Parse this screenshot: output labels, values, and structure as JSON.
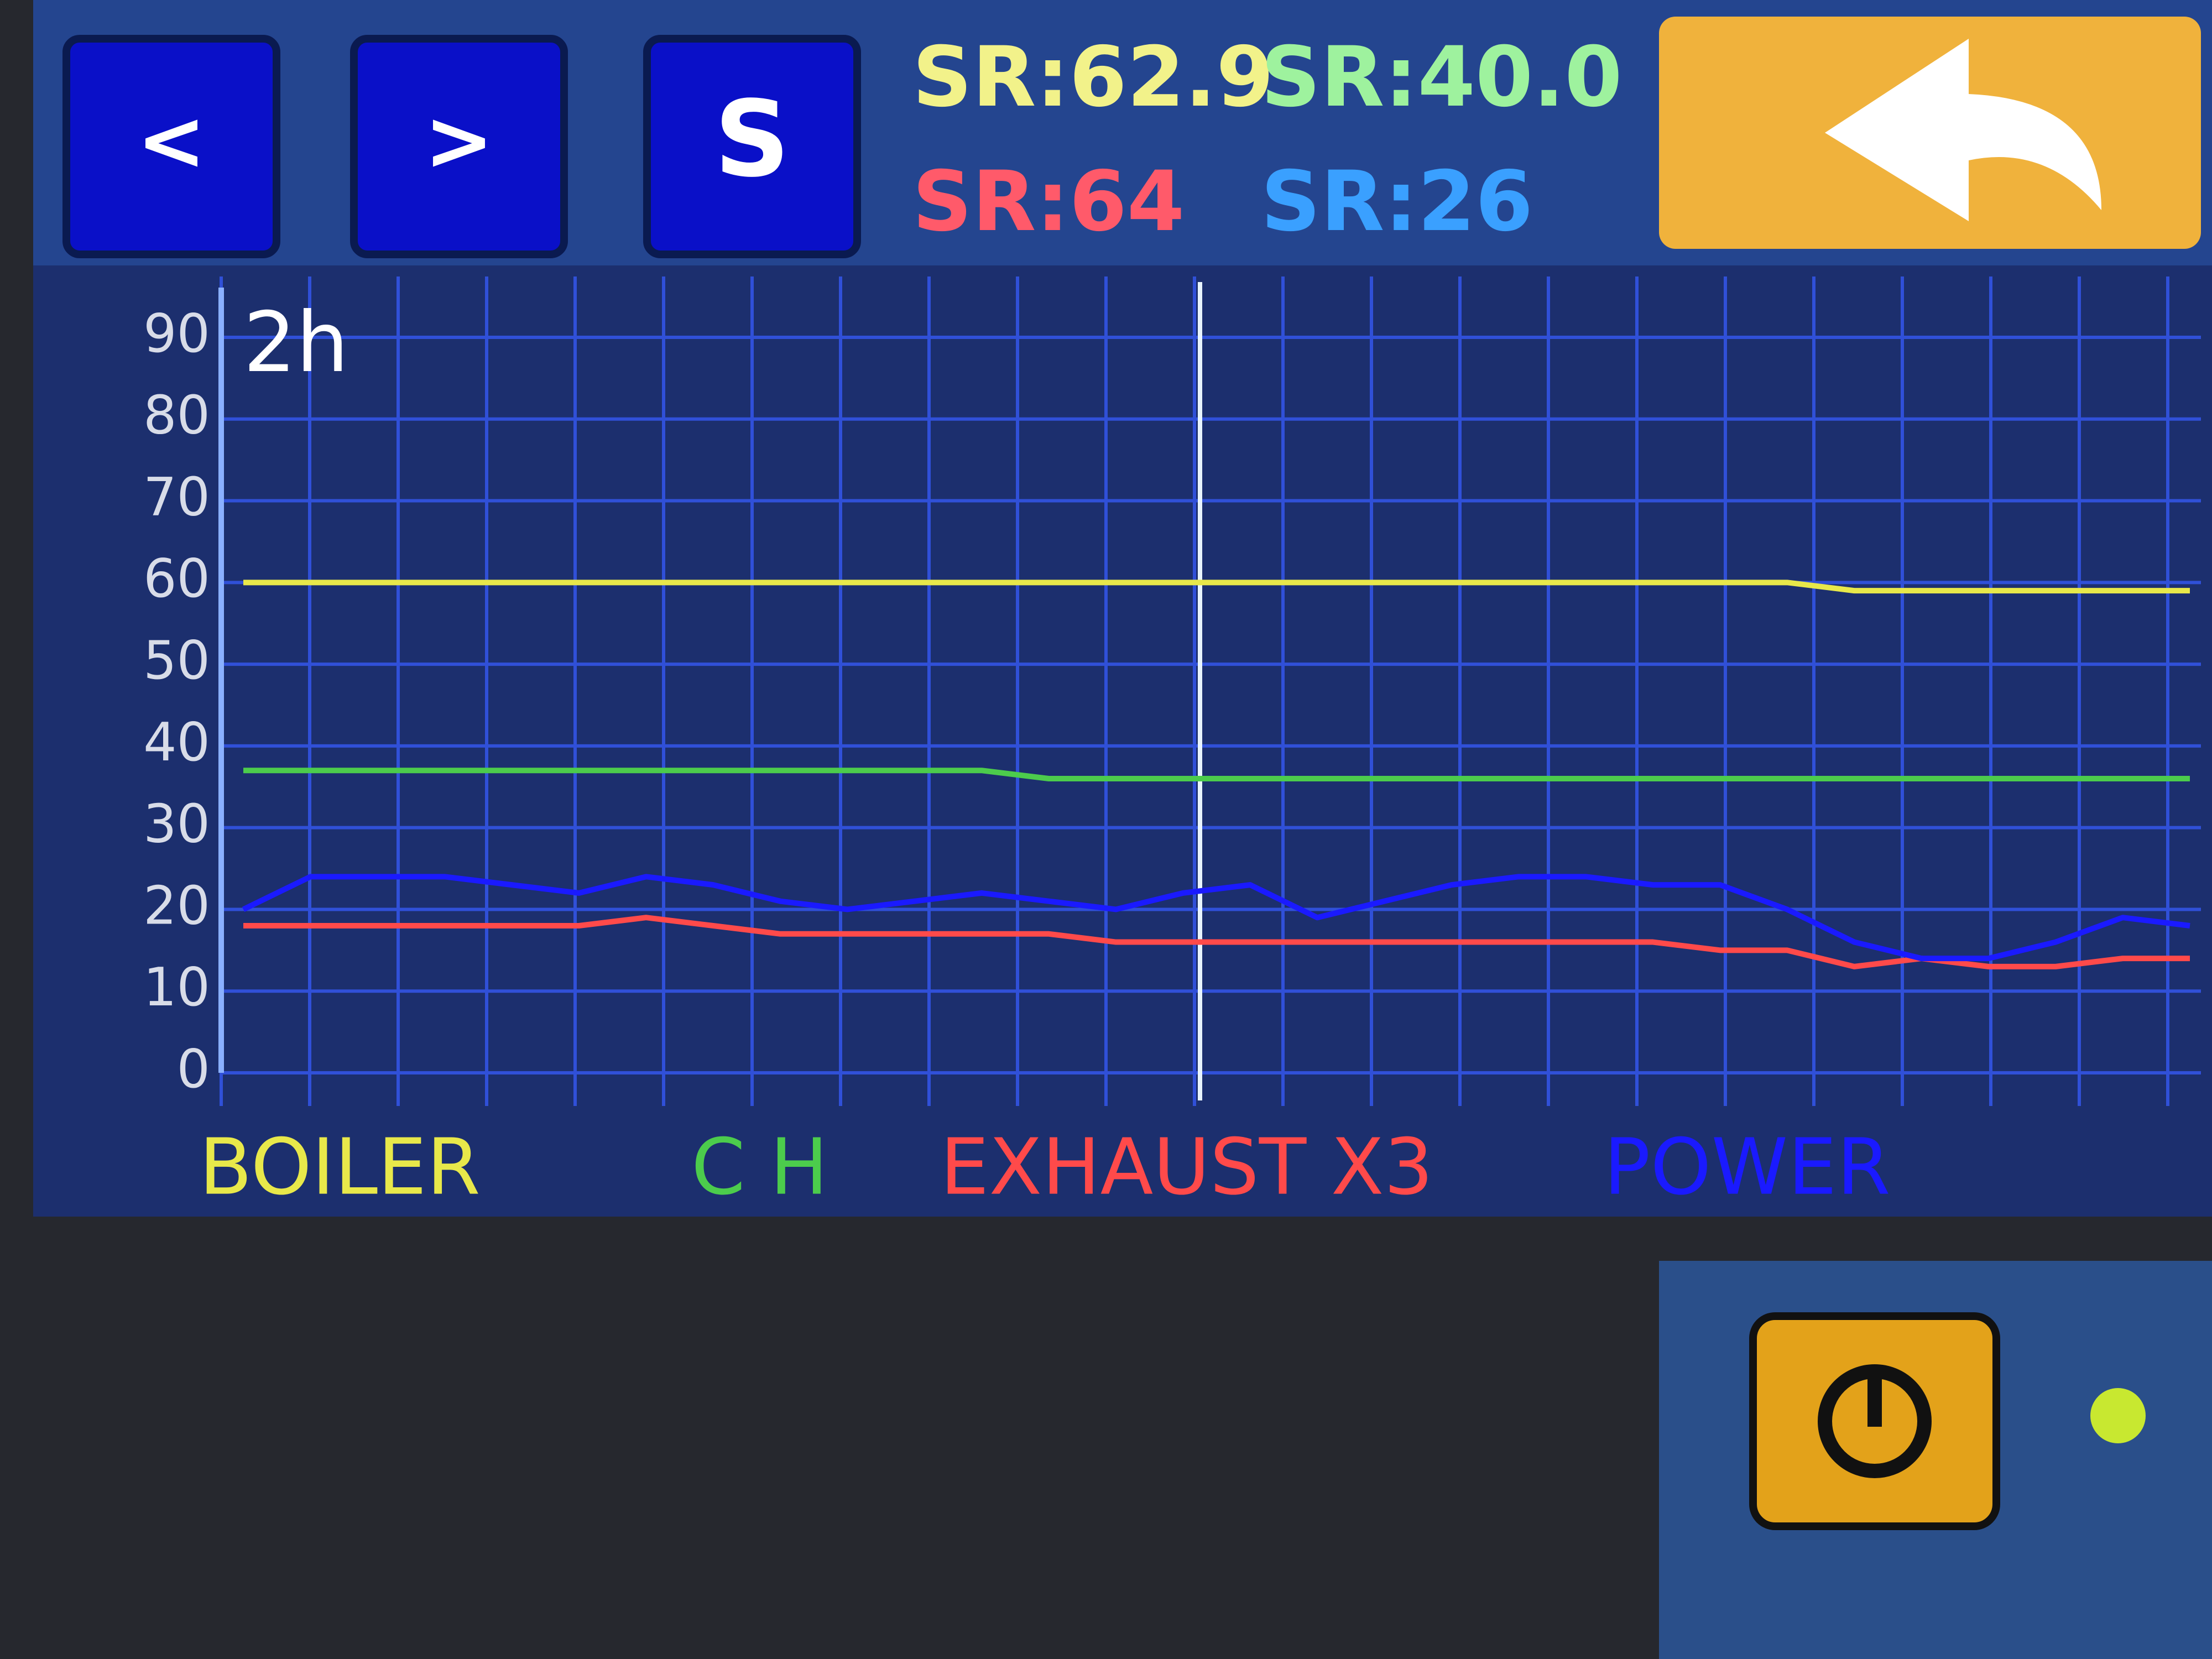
{
  "ui": {
    "buttons": [
      "<",
      ">",
      "S"
    ],
    "readings": [
      {
        "text": "SR:62.9",
        "color": "#f2f28a"
      },
      {
        "text": "SR:40.0",
        "color": "#9ef29e"
      },
      {
        "text": "SR:64",
        "color": "#ff5a6a"
      },
      {
        "text": "SR:26",
        "color": "#3aa0ff"
      }
    ]
  },
  "chart_data": {
    "type": "line",
    "annotation": "2h",
    "categories": [
      null,
      null,
      null,
      null,
      null,
      null,
      null,
      null,
      null,
      null,
      null,
      null,
      null,
      null,
      null,
      null,
      null,
      null,
      null,
      null,
      null,
      null,
      null,
      null,
      null,
      null,
      null,
      null,
      null,
      null
    ],
    "series": [
      {
        "name": "BOILER",
        "color": "#e8e84a",
        "values": [
          60,
          60,
          60,
          60,
          60,
          60,
          60,
          60,
          60,
          60,
          60,
          60,
          60,
          60,
          60,
          60,
          60,
          60,
          60,
          60,
          60,
          60,
          60,
          60,
          59,
          59,
          59,
          59,
          59,
          59
        ]
      },
      {
        "name": "C H",
        "color": "#4ccc4c",
        "values": [
          37,
          37,
          37,
          37,
          37,
          37,
          37,
          37,
          37,
          37,
          37,
          37,
          36,
          36,
          36,
          36,
          36,
          36,
          36,
          36,
          36,
          36,
          36,
          36,
          36,
          36,
          36,
          36,
          36,
          36
        ]
      },
      {
        "name": "EXHAUST X3",
        "color": "#ff4a4a",
        "values": [
          18,
          18,
          18,
          18,
          18,
          18,
          19,
          18,
          17,
          17,
          17,
          17,
          17,
          16,
          16,
          16,
          16,
          16,
          16,
          16,
          16,
          16,
          15,
          15,
          13,
          14,
          13,
          13,
          14,
          14
        ]
      },
      {
        "name": "POWER",
        "color": "#1a1aff",
        "values": [
          20,
          24,
          24,
          24,
          23,
          22,
          24,
          23,
          21,
          20,
          21,
          22,
          21,
          20,
          22,
          23,
          19,
          21,
          23,
          24,
          24,
          23,
          23,
          20,
          16,
          14,
          14,
          16,
          19,
          18
        ]
      }
    ],
    "ylim": [
      0,
      90
    ],
    "yticks": [
      0,
      10,
      20,
      30,
      40,
      50,
      60,
      70,
      80,
      90
    ],
    "grid": true
  }
}
